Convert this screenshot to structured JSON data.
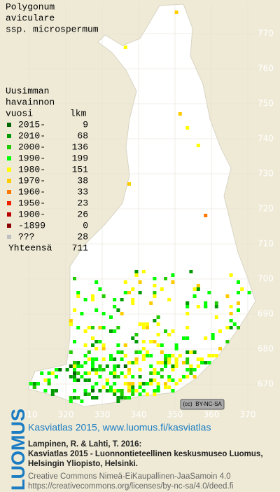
{
  "title": [
    "Polygonum",
    "aviculare",
    "ssp. microspermum"
  ],
  "legend": {
    "heading": [
      "Uusimman",
      "havainnon",
      "vuosi"
    ],
    "count_heading": "lkm",
    "items": [
      {
        "label": "2015-",
        "count": 9,
        "color": "#006600"
      },
      {
        "label": "2010-",
        "count": 68,
        "color": "#009900"
      },
      {
        "label": "2000-",
        "count": 136,
        "color": "#22cc00"
      },
      {
        "label": "1990-",
        "count": 199,
        "color": "#00ff00"
      },
      {
        "label": "1980-",
        "count": 151,
        "color": "#ffff00"
      },
      {
        "label": "1970-",
        "count": 38,
        "color": "#ffcc00"
      },
      {
        "label": "1960-",
        "count": 33,
        "color": "#ff7700"
      },
      {
        "label": "1950-",
        "count": 23,
        "color": "#ee2200"
      },
      {
        "label": "1900-",
        "count": 26,
        "color": "#bb0000"
      },
      {
        "label": "-1899",
        "count": 0,
        "color": "#880000"
      },
      {
        "label": "???",
        "count": 28,
        "color": "#c0c0c0"
      }
    ],
    "total_label": "Yhteensä",
    "total": 711
  },
  "grid": {
    "north": [
      770,
      760,
      750,
      740,
      730,
      720,
      710,
      700,
      690,
      680,
      670
    ],
    "east": [
      310,
      320,
      330,
      340,
      350,
      360,
      370
    ]
  },
  "badge": [
    "(cc)",
    "BY-NC-SA"
  ],
  "footer": {
    "logo": "LUOMUS",
    "link": "Kasviatlas 2015, www.luomus.fi/kasviatlas",
    "citation": [
      "Lampinen, R. & Lahti, T. 2016:",
      "Kasviatlas 2015 - Luonnontieteellinen keskusmuseo Luomus,",
      "Helsingin Yliopisto, Helsinki."
    ],
    "license": [
      "Creative Commons Nimeä-EiKaupallinen-JaaSamoin 4.0",
      "https://creativecommons.org/licenses/by-nc-sa/4.0/deed.fi"
    ]
  }
}
